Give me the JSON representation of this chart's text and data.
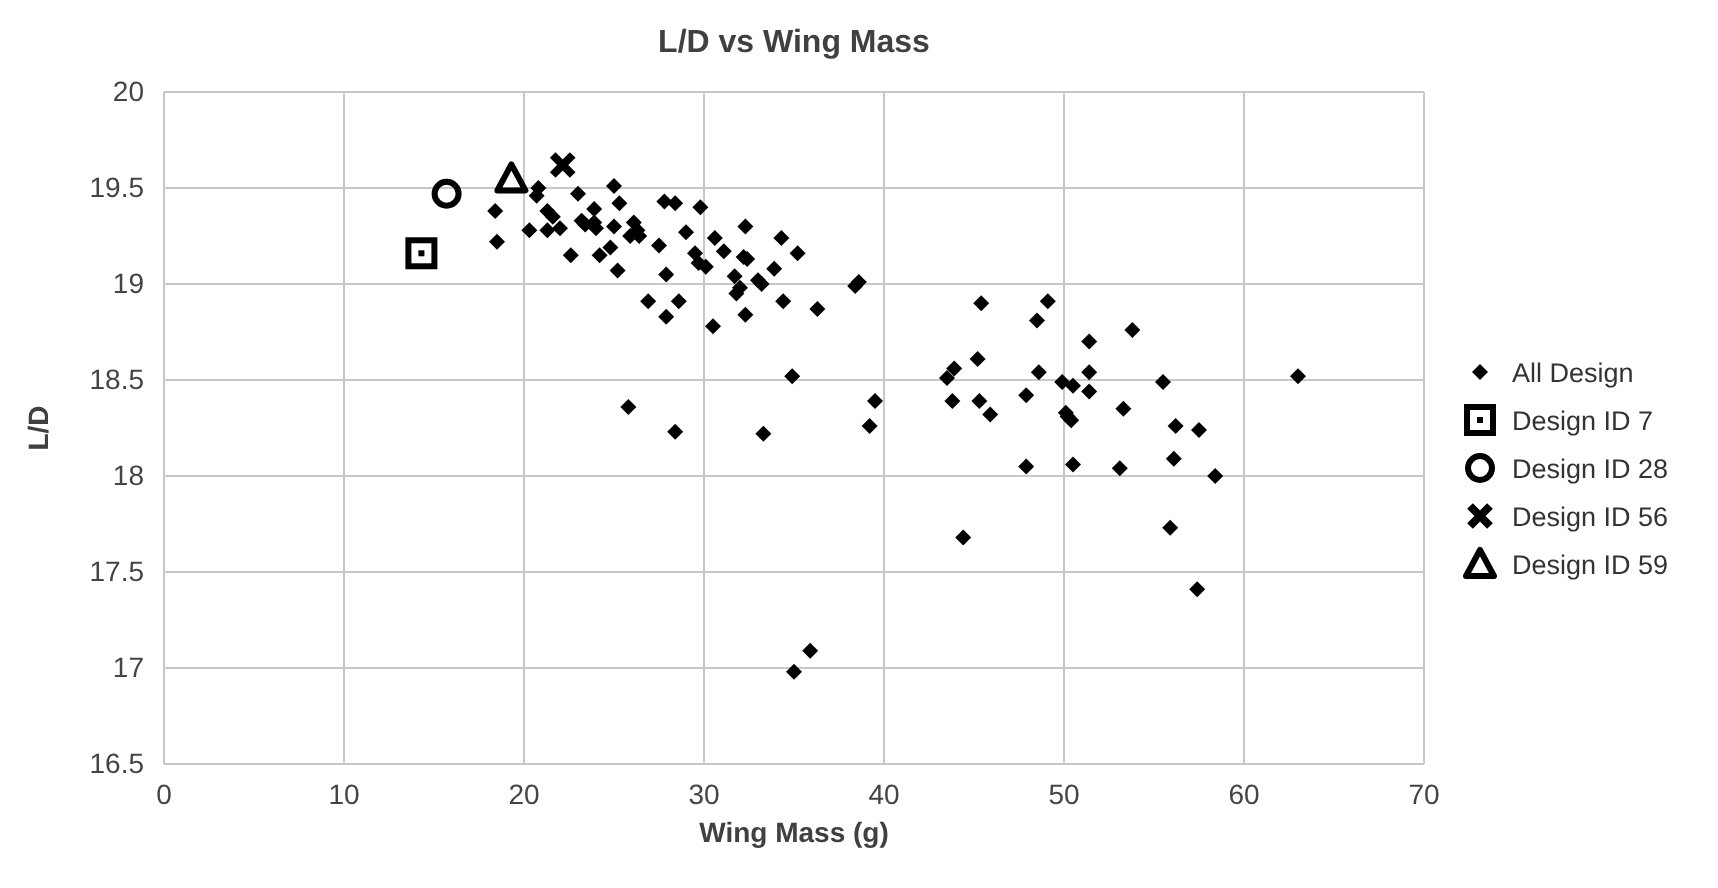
{
  "chart_data": {
    "type": "scatter",
    "title": "L/D vs Wing Mass",
    "xlabel": "Wing Mass (g)",
    "ylabel": "L/D",
    "xlim": [
      0,
      70
    ],
    "xticks": [
      0,
      10,
      20,
      30,
      40,
      50,
      60,
      70
    ],
    "ylim": [
      16.5,
      20
    ],
    "yticks": [
      16.5,
      17,
      17.5,
      18,
      18.5,
      19,
      19.5,
      20
    ],
    "grid": true,
    "legend": "right",
    "series": [
      {
        "name": "All Design",
        "color": "#000000",
        "marker": "diamond",
        "x": [
          18.4,
          18.5,
          20.3,
          20.7,
          20.8,
          21.3,
          21.3,
          21.6,
          22.0,
          22.6,
          23.0,
          23.2,
          23.4,
          23.9,
          23.9,
          24.0,
          24.2,
          24.8,
          25.0,
          25.0,
          25.2,
          25.3,
          25.9,
          26.1,
          26.3,
          26.4,
          26.9,
          27.5,
          27.8,
          27.9,
          27.9,
          28.4,
          28.6,
          29.0,
          29.5,
          29.7,
          29.8,
          30.1,
          30.6,
          30.5,
          31.1,
          31.7,
          31.8,
          32.0,
          32.2,
          32.3,
          32.3,
          32.4,
          33.0,
          33.2,
          33.9,
          34.3,
          34.4,
          34.9,
          35.2,
          36.3,
          38.4,
          38.6,
          25.8,
          28.4,
          33.3,
          39.5,
          39.2,
          35.0,
          35.9,
          45.4,
          49.1,
          48.5,
          53.8,
          51.4,
          45.2,
          43.9,
          43.5,
          48.6,
          51.4,
          49.9,
          50.5,
          55.5,
          63.0,
          43.8,
          45.3,
          45.9,
          47.9,
          51.4,
          53.3,
          50.1,
          50.2,
          50.4,
          56.2,
          57.5,
          56.1,
          47.9,
          50.5,
          53.1,
          58.4,
          55.9,
          44.4,
          57.4
        ],
        "values": [
          19.38,
          19.22,
          19.28,
          19.46,
          19.5,
          19.28,
          19.38,
          19.35,
          19.29,
          19.15,
          19.47,
          19.33,
          19.31,
          19.32,
          19.39,
          19.29,
          19.15,
          19.19,
          19.3,
          19.51,
          19.07,
          19.42,
          19.25,
          19.32,
          19.28,
          19.25,
          18.91,
          19.2,
          19.43,
          19.05,
          18.83,
          19.42,
          18.91,
          19.27,
          19.16,
          19.11,
          19.4,
          19.09,
          19.24,
          18.78,
          19.17,
          19.04,
          18.95,
          18.98,
          19.14,
          19.3,
          18.84,
          19.13,
          19.02,
          19.0,
          19.08,
          19.24,
          18.91,
          18.52,
          19.16,
          18.87,
          18.99,
          19.01,
          18.36,
          18.23,
          18.22,
          18.39,
          18.26,
          16.98,
          17.09,
          18.9,
          18.91,
          18.81,
          18.76,
          18.7,
          18.61,
          18.56,
          18.51,
          18.54,
          18.54,
          18.49,
          18.47,
          18.49,
          18.52,
          18.39,
          18.39,
          18.32,
          18.42,
          18.44,
          18.35,
          18.33,
          18.31,
          18.29,
          18.26,
          18.24,
          18.09,
          18.05,
          18.06,
          18.04,
          18.0,
          17.73,
          17.68,
          17.41
        ]
      },
      {
        "name": "Design ID 7",
        "color": "#000000",
        "marker": "square",
        "x": [
          14.3
        ],
        "values": [
          19.16
        ]
      },
      {
        "name": "Design ID 28",
        "color": "#000000",
        "marker": "circle",
        "x": [
          15.7
        ],
        "values": [
          19.47
        ]
      },
      {
        "name": "Design ID 56",
        "color": "#000000",
        "marker": "cross",
        "x": [
          22.15
        ],
        "values": [
          19.62
        ]
      },
      {
        "name": "Design ID 59",
        "color": "#000000",
        "marker": "triangle",
        "x": [
          19.3
        ],
        "values": [
          19.55
        ]
      }
    ]
  }
}
